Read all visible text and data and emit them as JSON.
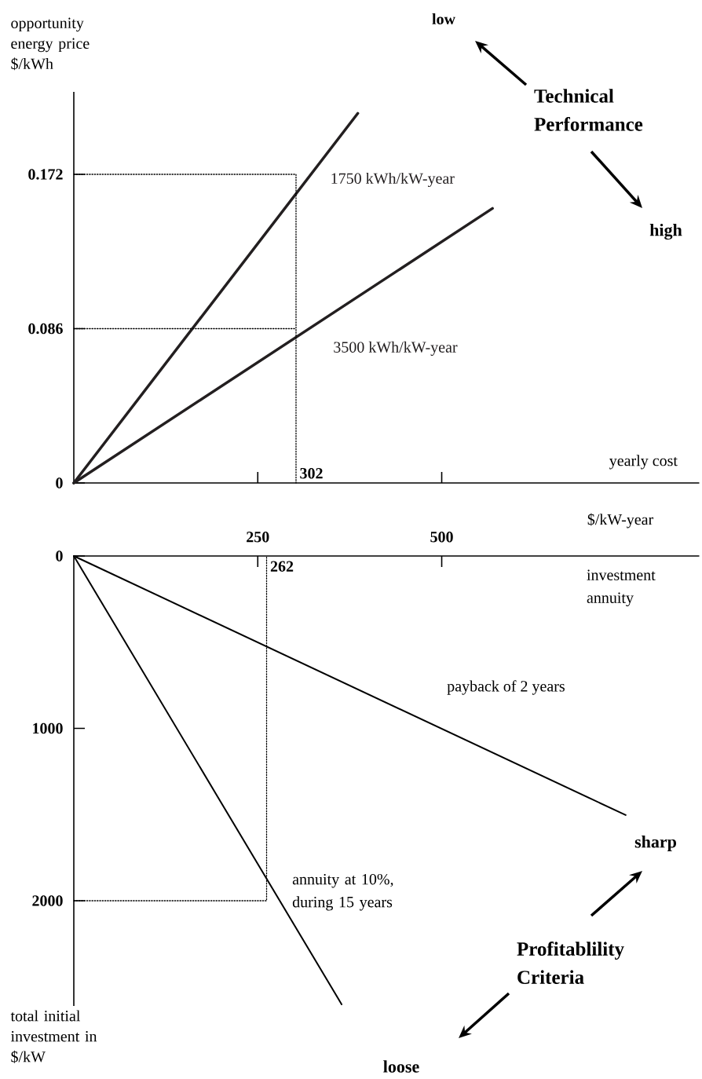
{
  "chart_data": [
    {
      "type": "line",
      "xlabel": "yearly cost",
      "ylabel": "opportunity energy price $/kWh",
      "annotations": [
        "low",
        "Technical Performance",
        "high",
        {
          "text": "302",
          "x": 302,
          "y": 0
        }
      ],
      "tick_labels": "y",
      "xlim": [
        0,
        850
      ],
      "ylim": [
        0,
        0.218
      ],
      "xticks": [
        {
          "value": 250,
          "label": null
        },
        {
          "value": 500,
          "label": null
        }
      ],
      "yticks": [
        0,
        0.086,
        0.172
      ],
      "series": [
        {
          "name": "1750 kWh/kW-year",
          "color": "#231f20",
          "x": [
            0,
            386
          ],
          "values": [
            0,
            0.206
          ]
        },
        {
          "name": "3500 kWh/kW-year",
          "color": "#231f20",
          "x": [
            0,
            569
          ],
          "values": [
            0,
            0.153
          ]
        },
        {
          "color": "#000000",
          "line_style": "dotted",
          "x": [
            0,
            302,
            302
          ],
          "values": [
            0.172,
            0.172,
            0
          ]
        },
        {
          "color": "#000000",
          "line_style": "dotted",
          "x": [
            0,
            302
          ],
          "values": [
            0.086,
            0.086
          ]
        }
      ]
    },
    {
      "type": "line",
      "xlabel": "investment annuity",
      "ylabel": "total initial investment in $/kW",
      "annotations": [
        "$/kW-year",
        "sharp",
        "Profitablility Criteria",
        "loose",
        {
          "text": "262",
          "x": 262,
          "y": 0
        }
      ],
      "xlim": [
        0,
        850
      ],
      "ylim": [
        2610,
        0
      ],
      "xticks": [
        250,
        500
      ],
      "yticks": [
        0,
        1000,
        2000
      ],
      "series": [
        {
          "name": "payback of 2 years",
          "color": "#000000",
          "x": [
            0,
            750
          ],
          "values": [
            0,
            1503
          ]
        },
        {
          "name": "annuity at 10%, during 15 years",
          "color": "#000000",
          "x": [
            0,
            364
          ],
          "values": [
            0,
            2601
          ]
        },
        {
          "color": "#000000",
          "line_style": "dotted",
          "x": [
            0,
            262,
            262
          ],
          "values": [
            2000,
            2000,
            0
          ]
        }
      ]
    }
  ]
}
